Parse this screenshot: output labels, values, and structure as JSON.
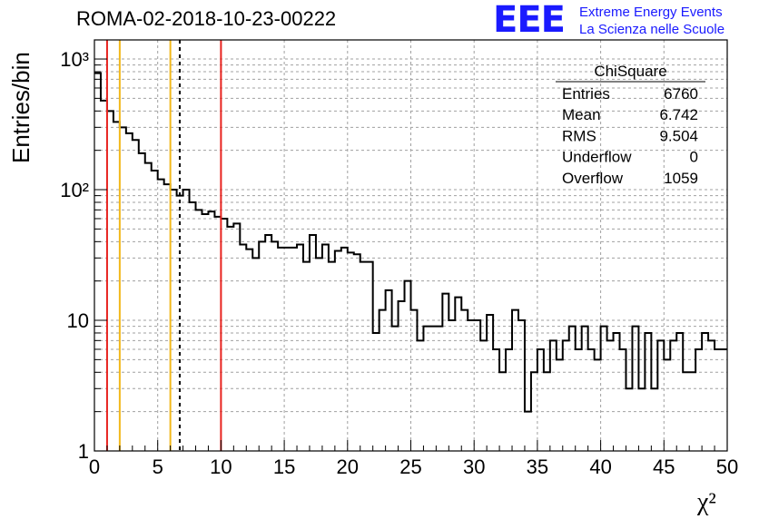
{
  "header": {
    "title": "ROMA-02-2018-10-23-00222",
    "logo_text": "EEE",
    "logo_line1": "Extreme Energy Events",
    "logo_line2": "La Scienza nelle Scuole"
  },
  "stats": {
    "name": "ChiSquare",
    "rows": [
      {
        "label": "Entries",
        "value": "6760"
      },
      {
        "label": "Mean",
        "value": "6.742"
      },
      {
        "label": "RMS",
        "value": "9.504"
      },
      {
        "label": "Underflow",
        "value": "0"
      },
      {
        "label": "Overflow",
        "value": "1059"
      }
    ]
  },
  "colors": {
    "hist": "#000000",
    "red_line": "#e8231f",
    "yellow_line": "#f2b81a",
    "grid": "#a0a0a0",
    "logo": "#1a1aff"
  },
  "chart_data": {
    "type": "histogram",
    "xlabel": "χ²",
    "ylabel": "Entries/bin",
    "xlim": [
      0,
      50
    ],
    "ylim": [
      1,
      1400
    ],
    "yscale": "log",
    "grid": true,
    "bin_width": 0.5,
    "x_ticks": [
      0,
      5,
      10,
      15,
      20,
      25,
      30,
      35,
      40,
      45,
      50
    ],
    "x_tick_labels": [
      "0",
      "5",
      "10",
      "15",
      "20",
      "25",
      "30",
      "35",
      "40",
      "45",
      "50"
    ],
    "y_ticks": [
      1,
      10,
      100,
      1000
    ],
    "y_tick_labels": [
      "1",
      "10",
      "10²",
      "10³"
    ],
    "values": [
      780,
      480,
      400,
      330,
      300,
      270,
      240,
      190,
      160,
      140,
      120,
      110,
      100,
      90,
      100,
      80,
      70,
      65,
      68,
      62,
      60,
      52,
      55,
      38,
      35,
      30,
      40,
      45,
      40,
      36,
      36,
      36,
      38,
      28,
      45,
      30,
      38,
      28,
      34,
      36,
      33,
      32,
      28,
      28,
      8,
      12,
      17,
      9,
      14,
      20,
      12,
      7,
      9,
      9,
      9,
      16,
      10,
      15,
      12,
      10,
      10,
      7,
      11,
      6,
      4,
      6,
      12,
      10,
      2,
      4,
      6,
      4,
      7,
      5,
      7,
      9,
      6,
      9,
      6,
      5,
      9,
      7,
      8,
      6,
      3,
      9,
      3,
      8,
      3,
      7,
      5,
      7,
      8,
      4,
      4,
      6,
      8,
      7,
      6,
      6
    ]
  },
  "markers": [
    {
      "x": 1,
      "style": "solid",
      "color": "#e8231f"
    },
    {
      "x": 2,
      "style": "solid",
      "color": "#f2b81a"
    },
    {
      "x": 6,
      "style": "solid",
      "color": "#f2b81a"
    },
    {
      "x": 6.742,
      "style": "dashed",
      "color": "#000000"
    },
    {
      "x": 10,
      "style": "solid",
      "color": "#e8231f"
    }
  ]
}
